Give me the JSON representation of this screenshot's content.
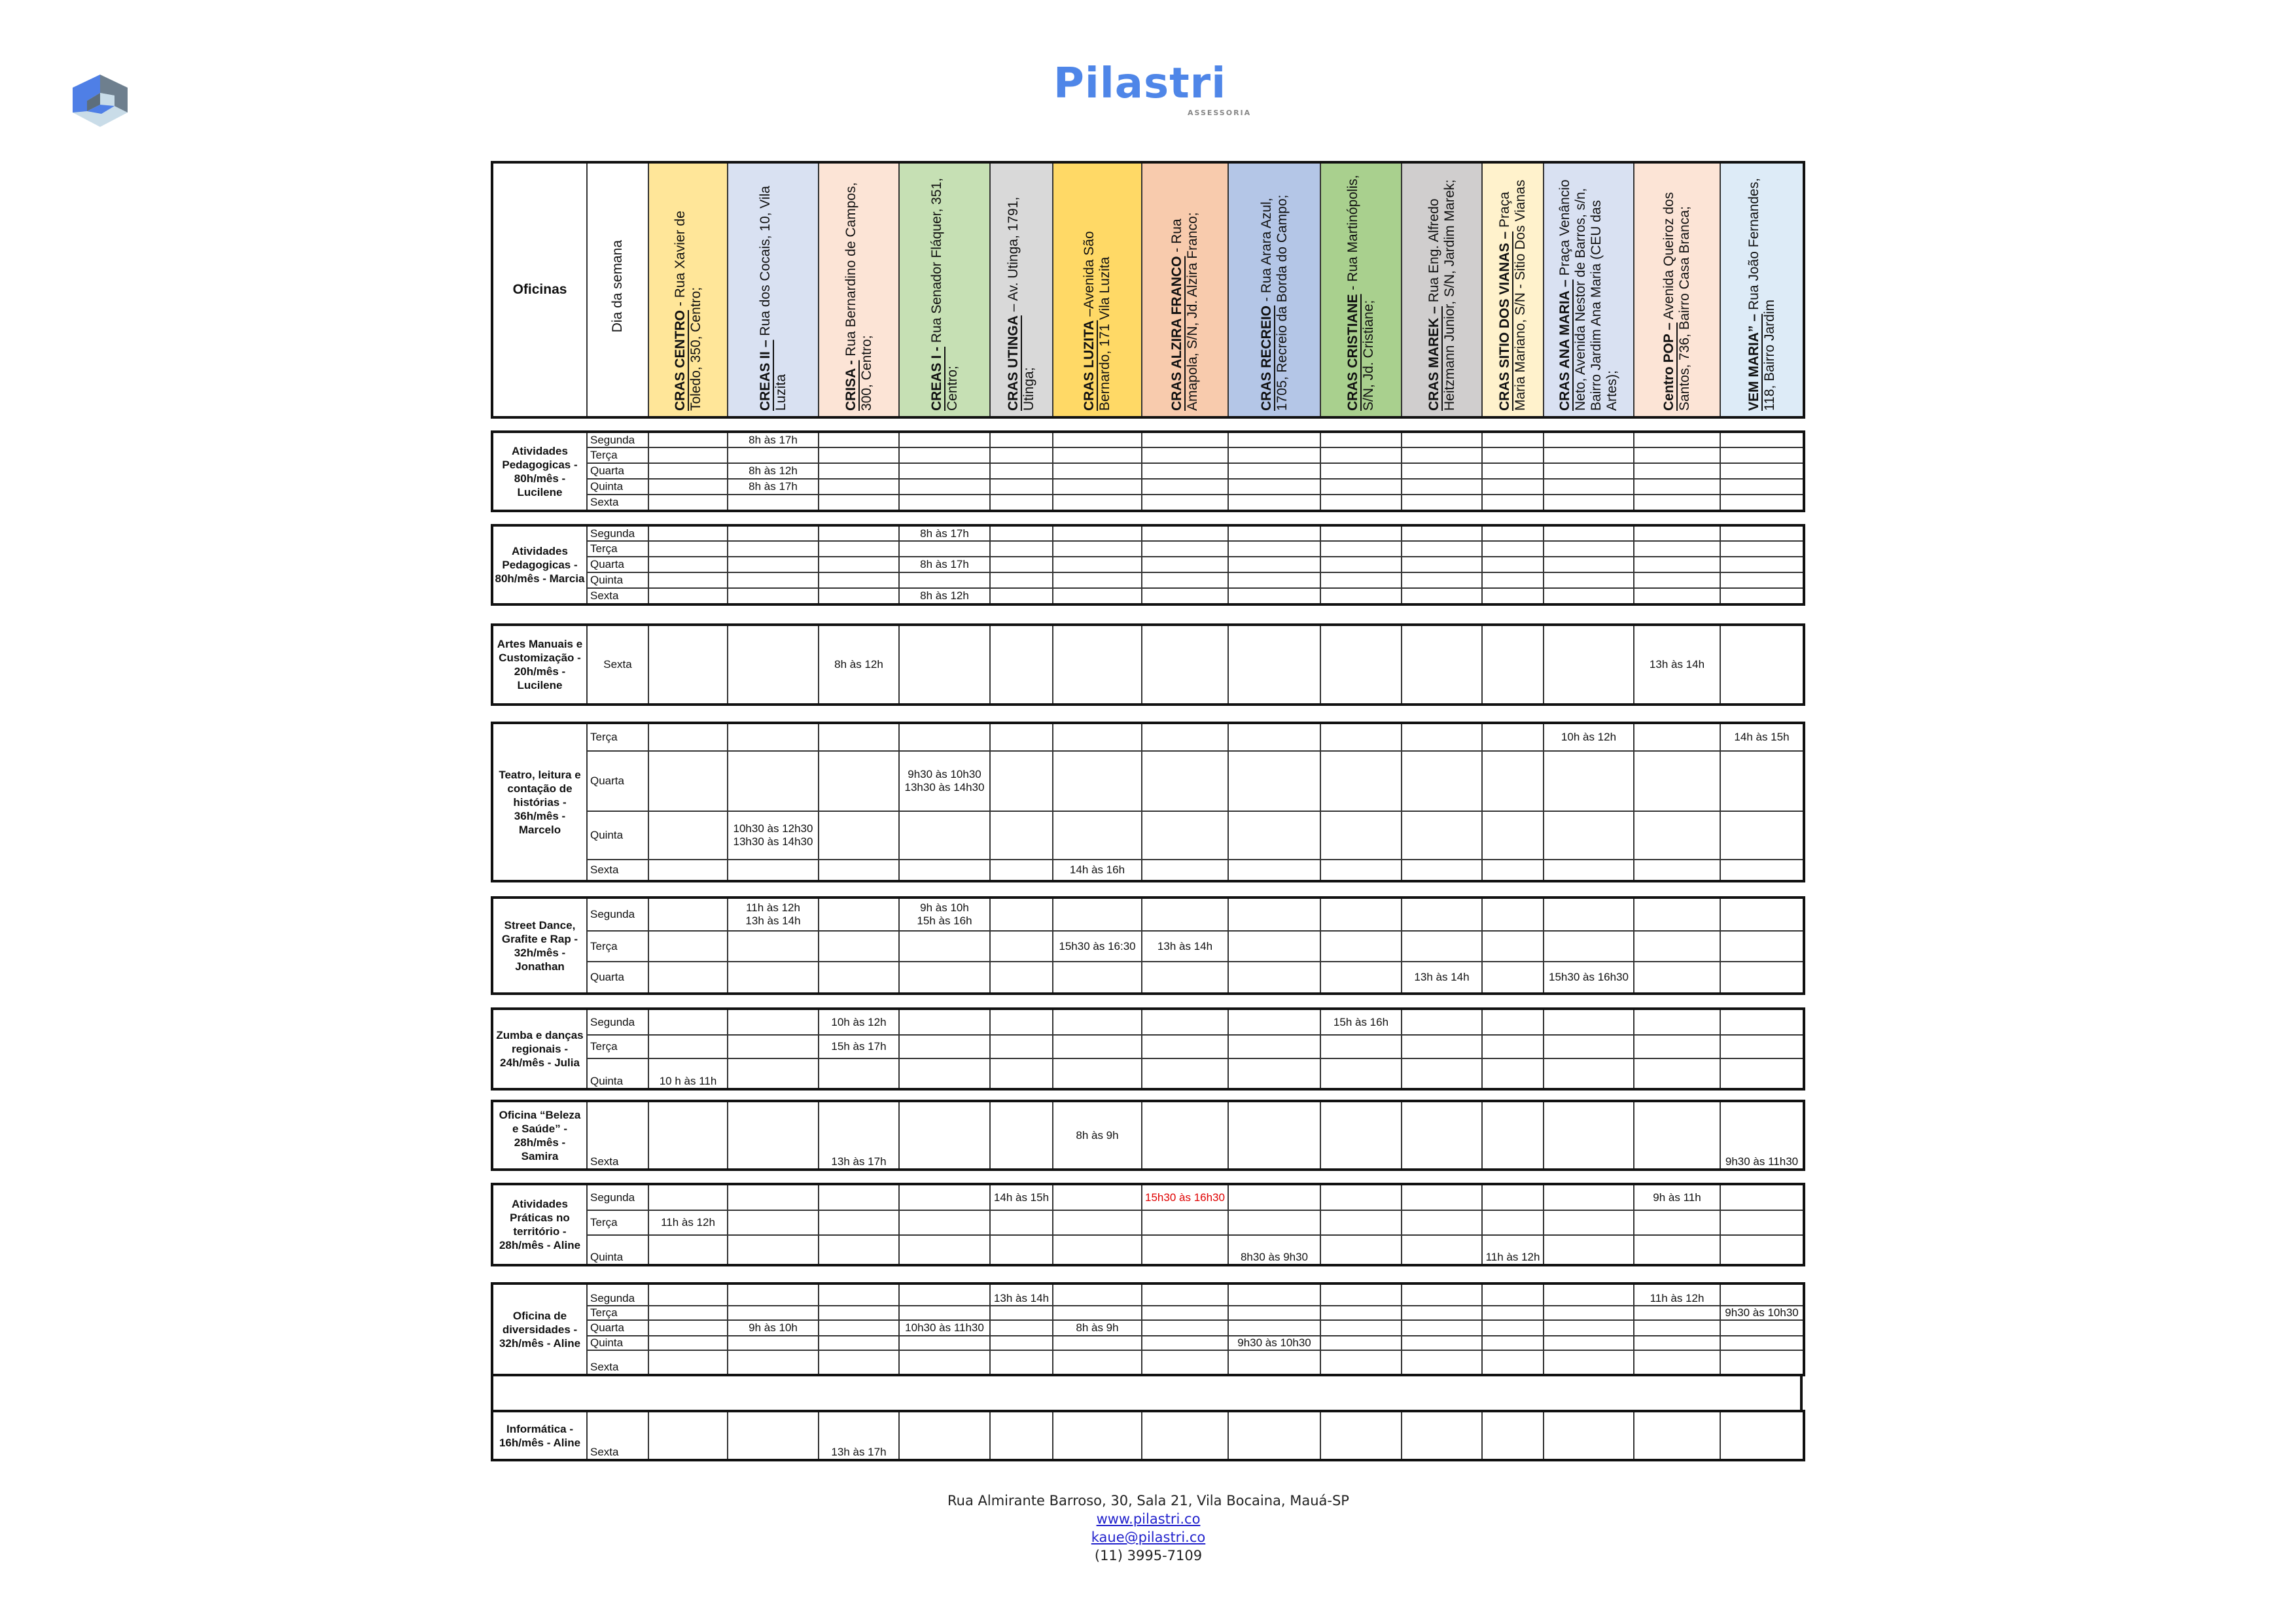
{
  "brand": {
    "name": "Pilastri",
    "subtitle": "ASSESSORIA"
  },
  "header": {
    "oficinas_label": "Oficinas",
    "day_label": "Dia da semana",
    "columns": [
      {
        "name": "CRAS CENTRO",
        "address": " - Rua Xavier de Toledo, 350, Centro;",
        "color": "#FFE699"
      },
      {
        "name": "CREAS II –",
        "address": " Rua dos Cocais, 10, Vila Luzita",
        "color": "#D9E1F2"
      },
      {
        "name": "CRISA -",
        "address": " Rua Bernardino de Campos, 300, Centro;",
        "color": "#FCE4D6"
      },
      {
        "name": "CREAS I -",
        "address": " Rua Senador Fláquer, 351, Centro;",
        "color": "#C6E0B4"
      },
      {
        "name": "CRAS UTINGA",
        "address": " – Av. Utinga, 1791, Utinga;",
        "color": "#D9D9D9"
      },
      {
        "name": "CRAS LUZITA",
        "address": " –Avenida São Bernardo, 171 Vila Luzita",
        "color": "#FFD966"
      },
      {
        "name": "CRAS ALZIRA FRANCO",
        "address": " - Rua Amapola, S/N, Jd. Alzira Franco;",
        "color": "#F8CBAD"
      },
      {
        "name": "CRAS RECREIO",
        "address": " - Rua Arara Azul, 1705, Recreio da Borda do Campo;",
        "color": "#B4C6E7"
      },
      {
        "name": "CRAS CRISTIANE",
        "address": " - Rua Martinópolis, S/N, Jd. Cristiane;",
        "color": "#A9D08E"
      },
      {
        "name": "CRAS MAREK –",
        "address": " Rua Eng. Alfredo Heitzmann Junior, S/N, Jardim Marek;",
        "color": "#D0CECE"
      },
      {
        "name": "CRAS SITIO DOS VIANAS –",
        "address": " Praça Maria Mariano, S/N - Sitio Dos Vianas",
        "color": "#FFF2CC"
      },
      {
        "name": "CRAS ANA MARIA –",
        "address": " Praça Venâncio Neto, Avenida Nestor de Barros, s/n, Bairro Jardim Ana Maria (CEU das Artes);",
        "color": "#D9E1F2"
      },
      {
        "name": "Centro POP –",
        "address": " Avenida Queiroz dos Santos, 736, Bairro Casa Branca;",
        "color": "#FCE4D6"
      },
      {
        "name": "VEM MARIA” –",
        "address": " Rua João Fernandes, 118, Bairro Jardim",
        "color": "#DDEBF7"
      }
    ]
  },
  "blocks": [
    {
      "title": "Atividades Pedagogicas - 80h/mês - Lucilene",
      "rows": [
        {
          "day": "Segunda",
          "cells": [
            "",
            "8h às 17h",
            "",
            "",
            "",
            "",
            "",
            "",
            "",
            "",
            "",
            "",
            "",
            ""
          ]
        },
        {
          "day": "Terça",
          "cells": [
            "",
            "",
            "",
            "",
            "",
            "",
            "",
            "",
            "",
            "",
            "",
            "",
            "",
            ""
          ]
        },
        {
          "day": "Quarta",
          "cells": [
            "",
            "8h às 12h",
            "",
            "",
            "",
            "",
            "",
            "",
            "",
            "",
            "",
            "",
            "",
            ""
          ]
        },
        {
          "day": "Quinta",
          "cells": [
            "",
            "8h às 17h",
            "",
            "",
            "",
            "",
            "",
            "",
            "",
            "",
            "",
            "",
            "",
            ""
          ]
        },
        {
          "day": "Sexta",
          "cells": [
            "",
            "",
            "",
            "",
            "",
            "",
            "",
            "",
            "",
            "",
            "",
            "",
            "",
            ""
          ]
        }
      ]
    },
    {
      "title": "Atividades Pedagogicas - 80h/mês - Marcia",
      "rows": [
        {
          "day": "Segunda",
          "cells": [
            "",
            "",
            "",
            "8h às 17h",
            "",
            "",
            "",
            "",
            "",
            "",
            "",
            "",
            "",
            ""
          ]
        },
        {
          "day": "Terça",
          "cells": [
            "",
            "",
            "",
            "",
            "",
            "",
            "",
            "",
            "",
            "",
            "",
            "",
            "",
            ""
          ]
        },
        {
          "day": "Quarta",
          "cells": [
            "",
            "",
            "",
            "8h às 17h",
            "",
            "",
            "",
            "",
            "",
            "",
            "",
            "",
            "",
            ""
          ]
        },
        {
          "day": "Quinta",
          "cells": [
            "",
            "",
            "",
            "",
            "",
            "",
            "",
            "",
            "",
            "",
            "",
            "",
            "",
            ""
          ]
        },
        {
          "day": "Sexta",
          "cells": [
            "",
            "",
            "",
            "8h às 12h",
            "",
            "",
            "",
            "",
            "",
            "",
            "",
            "",
            "",
            ""
          ]
        }
      ]
    },
    {
      "title": "Artes Manuais e Customização - 20h/mês - Lucilene",
      "rows": [
        {
          "day": "Sexta",
          "cells": [
            "",
            "",
            "8h às 12h",
            "",
            "",
            "",
            "",
            "",
            "",
            "",
            "",
            "",
            "13h às 14h",
            ""
          ]
        }
      ]
    },
    {
      "title": "Teatro, leitura e contação de histórias - 36h/mês - Marcelo",
      "rows": [
        {
          "day": "Terça",
          "cells": [
            "",
            "",
            "",
            "",
            "",
            "",
            "",
            "",
            "",
            "",
            "",
            "10h às 12h",
            "",
            "14h às 15h"
          ]
        },
        {
          "day": "Quarta",
          "cells": [
            "",
            "",
            "",
            "9h30 às 10h30\n13h30 às 14h30",
            "",
            "",
            "",
            "",
            "",
            "",
            "",
            "",
            "",
            ""
          ]
        },
        {
          "day": "Quinta",
          "cells": [
            "",
            "10h30 às 12h30\n13h30 às 14h30",
            "",
            "",
            "",
            "",
            "",
            "",
            "",
            "",
            "",
            "",
            "",
            ""
          ]
        },
        {
          "day": "Sexta",
          "cells": [
            "",
            "",
            "",
            "",
            "",
            "14h às 16h",
            "",
            "",
            "",
            "",
            "",
            "",
            "",
            ""
          ]
        }
      ]
    },
    {
      "title": "Street Dance, Grafite e Rap - 32h/mês - Jonathan",
      "rows": [
        {
          "day": "Segunda",
          "cells": [
            "",
            "11h às 12h\n13h às 14h",
            "",
            "9h às 10h\n15h às 16h",
            "",
            "",
            "",
            "",
            "",
            "",
            "",
            "",
            "",
            ""
          ]
        },
        {
          "day": "Terça",
          "cells": [
            "",
            "",
            "",
            "",
            "",
            "15h30 às 16:30",
            "13h às 14h",
            "",
            "",
            "",
            "",
            "",
            "",
            ""
          ]
        },
        {
          "day": "Quarta",
          "cells": [
            "",
            "",
            "",
            "",
            "",
            "",
            "",
            "",
            "",
            "13h às 14h",
            "",
            "15h30 às 16h30",
            "",
            ""
          ]
        }
      ]
    },
    {
      "title": "Zumba e danças regionais - 24h/mês - Julia",
      "rows": [
        {
          "day": "Segunda",
          "cells": [
            "",
            "",
            "10h às 12h",
            "",
            "",
            "",
            "",
            "",
            "15h às 16h",
            "",
            "",
            "",
            "",
            ""
          ]
        },
        {
          "day": "Terça",
          "cells": [
            "",
            "",
            "15h às 17h",
            "",
            "",
            "",
            "",
            "",
            "",
            "",
            "",
            "",
            "",
            ""
          ]
        },
        {
          "day": "Quinta",
          "cells": [
            "10 h às 11h",
            "",
            "",
            "",
            "",
            "",
            "",
            "",
            "",
            "",
            "",
            "",
            "",
            ""
          ]
        }
      ]
    },
    {
      "title": "Oficina “Beleza e Saúde” - 28h/mês - Samira",
      "rows": [
        {
          "day": "Sexta",
          "cells": [
            "",
            "",
            "13h às 17h",
            "",
            "",
            "8h às 9h",
            "",
            "",
            "",
            "",
            "",
            "",
            "",
            "9h30 às 11h30"
          ]
        }
      ]
    },
    {
      "title": "Atividades Práticas no território - 28h/mês - Aline",
      "rows": [
        {
          "day": "Segunda",
          "cells": [
            "",
            "",
            "",
            "",
            "14h às 15h",
            "",
            "15h30 às 16h30",
            "",
            "",
            "",
            "",
            "",
            "9h às 11h",
            ""
          ]
        },
        {
          "day": "Terça",
          "cells": [
            "11h às 12h",
            "",
            "",
            "",
            "",
            "",
            "",
            "",
            "",
            "",
            "",
            "",
            "",
            ""
          ]
        },
        {
          "day": "Quinta",
          "cells": [
            "",
            "",
            "",
            "",
            "",
            "",
            "",
            "8h30 às 9h30",
            "",
            "",
            "11h às 12h",
            "",
            "",
            ""
          ]
        }
      ]
    },
    {
      "title": "Oficina de diversidades - 32h/mês - Aline",
      "rows": [
        {
          "day": "Segunda",
          "cells": [
            "",
            "",
            "",
            "",
            "13h às 14h",
            "",
            "",
            "",
            "",
            "",
            "",
            "",
            "11h às 12h",
            ""
          ]
        },
        {
          "day": "Terça",
          "cells": [
            "",
            "",
            "",
            "",
            "",
            "",
            "",
            "",
            "",
            "",
            "",
            "",
            "",
            "9h30 às 10h30"
          ]
        },
        {
          "day": "Quarta",
          "cells": [
            "",
            "9h às 10h",
            "",
            "10h30 às 11h30",
            "",
            "8h às 9h",
            "",
            "",
            "",
            "",
            "",
            "",
            "",
            ""
          ]
        },
        {
          "day": "Quinta",
          "cells": [
            "",
            "",
            "",
            "",
            "",
            "",
            "",
            "9h30 às 10h30",
            "",
            "",
            "",
            "",
            "",
            ""
          ]
        },
        {
          "day": "Sexta",
          "cells": [
            "",
            "",
            "",
            "",
            "",
            "",
            "",
            "",
            "",
            "",
            "",
            "",
            "",
            ""
          ]
        }
      ]
    },
    {
      "title": "Informática - 16h/mês - Aline",
      "rows": [
        {
          "day": "Sexta",
          "cells": [
            "",
            "",
            "13h às 17h",
            "",
            "",
            "",
            "",
            "",
            "",
            "",
            "",
            "",
            "",
            ""
          ]
        }
      ]
    }
  ],
  "highlight_color": "#E00000",
  "footer": {
    "address": "Rua Almirante Barroso, 30, Sala 21, Vila Bocaina, Mauá-SP",
    "website": "www.pilastri.co",
    "email": "kaue@pilastri.co",
    "phone": "(11) 3995-7109"
  }
}
